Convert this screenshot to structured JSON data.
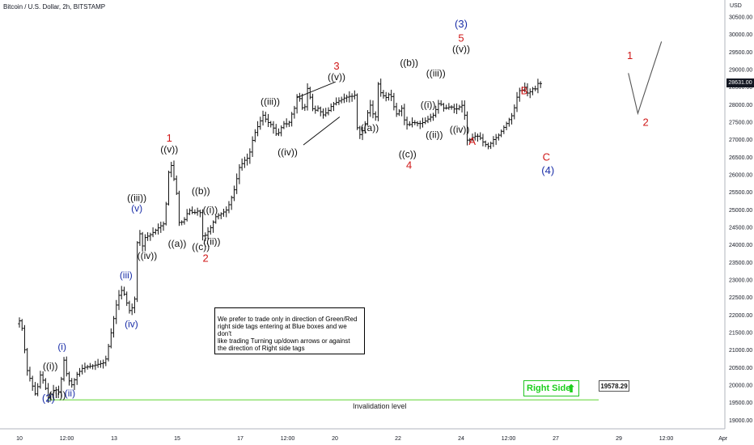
{
  "header": {
    "title": "Bitcoin / U.S. Dollar, 2h, BITSTAMP",
    "currency": "USD"
  },
  "note_box": {
    "line1": "We prefer to trade only in direction of Green/Red",
    "line2": "right side tags entering at Blue boxes and we don't",
    "line3": "like trading Turning up/down arrows or against",
    "line4": "the direction of Right side tags"
  },
  "right_side_tag": {
    "label": "Right Side",
    "arrow": "⬆",
    "color": "#22c522"
  },
  "invalidation": {
    "label": "Invalidation level",
    "price": "19578.29",
    "value": 19578.29,
    "color": "#7ddc5a"
  },
  "last_price": {
    "label": "28631.00",
    "value": 28631
  },
  "colors": {
    "red": "#d01818",
    "blue": "#1a2ea8",
    "black": "#111111"
  },
  "chart_data": {
    "type": "ohlc",
    "y_ticks": [
      "30500.00",
      "30000.00",
      "29500.00",
      "29000.00",
      "28500.00",
      "28000.00",
      "27500.00",
      "27000.00",
      "26500.00",
      "26000.00",
      "25500.00",
      "25000.00",
      "24500.00",
      "24000.00",
      "23500.00",
      "23000.00",
      "22500.00",
      "22000.00",
      "21500.00",
      "21000.00",
      "20500.00",
      "20000.00",
      "19500.00",
      "19000.00"
    ],
    "x_ticks": [
      "10",
      "12:00",
      "13",
      "15",
      "17",
      "12:00",
      "20",
      "22",
      "24",
      "12:00",
      "27",
      "29",
      "12:00",
      "Apr"
    ],
    "ylim": [
      18800,
      30800
    ],
    "price_path": [
      [
        0,
        21750
      ],
      [
        0.1,
        21850
      ],
      [
        0.2,
        21500
      ],
      [
        0.3,
        20500
      ],
      [
        0.45,
        20100
      ],
      [
        0.6,
        19700
      ],
      [
        0.75,
        20300
      ],
      [
        0.85,
        20100
      ],
      [
        1.0,
        19640
      ],
      [
        1.2,
        19900
      ],
      [
        1.35,
        19780
      ],
      [
        1.5,
        20750
      ],
      [
        1.6,
        20200
      ],
      [
        1.75,
        20000
      ],
      [
        1.9,
        20300
      ],
      [
        2.1,
        20500
      ],
      [
        2.4,
        20550
      ],
      [
        2.6,
        20600
      ],
      [
        2.8,
        20650
      ],
      [
        2.95,
        21300
      ],
      [
        3.05,
        21800
      ],
      [
        3.2,
        22500
      ],
      [
        3.35,
        22750
      ],
      [
        3.5,
        22300
      ],
      [
        3.6,
        22050
      ],
      [
        3.75,
        22500
      ],
      [
        3.85,
        24800
      ],
      [
        3.95,
        23850
      ],
      [
        4.05,
        24200
      ],
      [
        4.25,
        24300
      ],
      [
        4.5,
        24500
      ],
      [
        4.65,
        24600
      ],
      [
        4.75,
        25300
      ],
      [
        4.85,
        26500
      ],
      [
        4.95,
        26000
      ],
      [
        5.05,
        25600
      ],
      [
        5.15,
        24600
      ],
      [
        5.3,
        24700
      ],
      [
        5.45,
        25000
      ],
      [
        5.6,
        24900
      ],
      [
        5.8,
        25000
      ],
      [
        5.9,
        24200
      ],
      [
        6.0,
        24300
      ],
      [
        6.15,
        24500
      ],
      [
        6.3,
        24800
      ],
      [
        6.5,
        24900
      ],
      [
        6.65,
        25000
      ],
      [
        6.75,
        25200
      ],
      [
        6.9,
        25600
      ],
      [
        7.05,
        26200
      ],
      [
        7.2,
        26400
      ],
      [
        7.35,
        26500
      ],
      [
        7.5,
        27100
      ],
      [
        7.6,
        27300
      ],
      [
        7.7,
        27500
      ],
      [
        7.8,
        27700
      ],
      [
        7.95,
        27500
      ],
      [
        8.1,
        27400
      ],
      [
        8.25,
        27100
      ],
      [
        8.35,
        27300
      ],
      [
        8.5,
        27500
      ],
      [
        8.6,
        27400
      ],
      [
        8.7,
        27700
      ],
      [
        8.8,
        27900
      ],
      [
        8.9,
        28300
      ],
      [
        9.0,
        28100
      ],
      [
        9.1,
        27700
      ],
      [
        9.2,
        28500
      ],
      [
        9.3,
        28200
      ],
      [
        9.4,
        27800
      ],
      [
        9.55,
        27900
      ],
      [
        9.7,
        27700
      ],
      [
        9.85,
        27800
      ],
      [
        10.0,
        28000
      ],
      [
        10.2,
        28100
      ],
      [
        10.4,
        28200
      ],
      [
        10.6,
        28250
      ],
      [
        10.7,
        28200
      ],
      [
        10.75,
        28700
      ],
      [
        10.8,
        27000
      ],
      [
        10.9,
        27200
      ],
      [
        11.0,
        27300
      ],
      [
        11.1,
        27700
      ],
      [
        11.2,
        28000
      ],
      [
        11.3,
        27700
      ],
      [
        11.35,
        27400
      ],
      [
        11.45,
        28600
      ],
      [
        11.55,
        28300
      ],
      [
        11.7,
        28200
      ],
      [
        11.8,
        28300
      ],
      [
        11.9,
        28200
      ],
      [
        12.0,
        27700
      ],
      [
        12.1,
        27800
      ],
      [
        12.2,
        27900
      ],
      [
        12.3,
        27500
      ],
      [
        12.4,
        27400
      ],
      [
        12.55,
        27500
      ],
      [
        12.75,
        27450
      ],
      [
        12.9,
        27500
      ],
      [
        13.05,
        27600
      ],
      [
        13.2,
        27700
      ],
      [
        13.3,
        27900
      ],
      [
        13.4,
        28100
      ],
      [
        13.5,
        27900
      ],
      [
        13.6,
        27900
      ],
      [
        13.75,
        27950
      ],
      [
        13.9,
        27850
      ],
      [
        14.05,
        27950
      ],
      [
        14.15,
        28000
      ],
      [
        14.25,
        27300
      ],
      [
        14.3,
        26700
      ],
      [
        14.35,
        27000
      ],
      [
        14.5,
        27100
      ],
      [
        14.65,
        27100
      ],
      [
        14.8,
        26900
      ],
      [
        14.95,
        26800
      ],
      [
        15.1,
        27000
      ],
      [
        15.25,
        27100
      ],
      [
        15.4,
        27300
      ],
      [
        15.55,
        27500
      ],
      [
        15.7,
        27700
      ],
      [
        15.8,
        28000
      ],
      [
        15.9,
        28400
      ],
      [
        16.0,
        28400
      ],
      [
        16.1,
        28500
      ],
      [
        16.2,
        28300
      ],
      [
        16.3,
        28400
      ],
      [
        16.4,
        28500
      ],
      [
        16.5,
        28350
      ],
      [
        16.55,
        29100
      ],
      [
        16.6,
        28600
      ]
    ],
    "x_day_start": 10,
    "labels": [
      {
        "text": "(2)",
        "x": 0.92,
        "y": 19530,
        "color": "blue",
        "big": true
      },
      {
        "text": "((ii))",
        "x": 1.2,
        "y": 19630,
        "color": "black",
        "big": false
      },
      {
        "text": "(ii)",
        "x": 1.6,
        "y": 19680,
        "color": "blue",
        "big": false
      },
      {
        "text": "((i))",
        "x": 0.98,
        "y": 20450,
        "color": "black",
        "big": false
      },
      {
        "text": "(i)",
        "x": 1.35,
        "y": 21000,
        "color": "blue",
        "big": false
      },
      {
        "text": "(iii)",
        "x": 3.38,
        "y": 23050,
        "color": "blue",
        "big": false
      },
      {
        "text": "(iv)",
        "x": 3.55,
        "y": 21650,
        "color": "blue",
        "big": false
      },
      {
        "text": "((iii))",
        "x": 3.72,
        "y": 25250,
        "color": "black",
        "big": false
      },
      {
        "text": "(v)",
        "x": 3.72,
        "y": 24950,
        "color": "blue",
        "big": false
      },
      {
        "text": "((iv))",
        "x": 4.05,
        "y": 23600,
        "color": "black",
        "big": false
      },
      {
        "text": "1",
        "x": 4.75,
        "y": 26950,
        "color": "red",
        "big": true
      },
      {
        "text": "((v))",
        "x": 4.75,
        "y": 26630,
        "color": "black",
        "big": false
      },
      {
        "text": "((a))",
        "x": 5.0,
        "y": 23950,
        "color": "black",
        "big": false
      },
      {
        "text": "((b))",
        "x": 5.75,
        "y": 25450,
        "color": "black",
        "big": false
      },
      {
        "text": "((i))",
        "x": 6.05,
        "y": 24900,
        "color": "black",
        "big": false
      },
      {
        "text": "((c))",
        "x": 5.75,
        "y": 23850,
        "color": "black",
        "big": false
      },
      {
        "text": "((ii))",
        "x": 6.1,
        "y": 24000,
        "color": "black",
        "big": false
      },
      {
        "text": "2",
        "x": 5.9,
        "y": 23520,
        "color": "red",
        "big": true
      },
      {
        "text": "((iii))",
        "x": 7.95,
        "y": 28000,
        "color": "black",
        "big": false
      },
      {
        "text": "((iv))",
        "x": 8.5,
        "y": 26550,
        "color": "black",
        "big": false
      },
      {
        "text": "3",
        "x": 10.05,
        "y": 29000,
        "color": "red",
        "big": true
      },
      {
        "text": "((v))",
        "x": 10.05,
        "y": 28700,
        "color": "black",
        "big": false
      },
      {
        "text": "((a))",
        "x": 11.1,
        "y": 27250,
        "color": "black",
        "big": false
      },
      {
        "text": "((b))",
        "x": 12.35,
        "y": 29100,
        "color": "black",
        "big": false
      },
      {
        "text": "((c))",
        "x": 12.3,
        "y": 26500,
        "color": "black",
        "big": false
      },
      {
        "text": "4",
        "x": 12.35,
        "y": 26170,
        "color": "red",
        "big": true
      },
      {
        "text": "((iii))",
        "x": 13.2,
        "y": 28800,
        "color": "black",
        "big": false
      },
      {
        "text": "((i))",
        "x": 12.95,
        "y": 27900,
        "color": "black",
        "big": false
      },
      {
        "text": "((ii))",
        "x": 13.15,
        "y": 27050,
        "color": "black",
        "big": false
      },
      {
        "text": "(3)",
        "x": 14.0,
        "y": 30200,
        "color": "blue",
        "big": true
      },
      {
        "text": "5",
        "x": 14.0,
        "y": 29800,
        "color": "red",
        "big": true
      },
      {
        "text": "((v))",
        "x": 14.0,
        "y": 29500,
        "color": "black",
        "big": false
      },
      {
        "text": "((iv))",
        "x": 13.95,
        "y": 27200,
        "color": "black",
        "big": false
      },
      {
        "text": "A",
        "x": 14.35,
        "y": 26850,
        "color": "red",
        "big": true
      },
      {
        "text": "B",
        "x": 16.0,
        "y": 28300,
        "color": "red",
        "big": true
      },
      {
        "text": "C",
        "x": 16.7,
        "y": 26400,
        "color": "red",
        "big": true
      },
      {
        "text": "(4)",
        "x": 16.75,
        "y": 26020,
        "color": "blue",
        "big": true
      },
      {
        "text": "1",
        "x": 19.35,
        "y": 29300,
        "color": "red",
        "big": true
      },
      {
        "text": "2",
        "x": 19.85,
        "y": 27400,
        "color": "red",
        "big": true
      }
    ],
    "projection": [
      [
        19.3,
        28900
      ],
      [
        19.6,
        27750
      ],
      [
        20.35,
        29800
      ]
    ],
    "wedge": [
      [
        [
          8.8,
          28200
        ],
        [
          10.02,
          28650
        ]
      ],
      [
        [
          9.0,
          26850
        ],
        [
          10.15,
          27650
        ]
      ]
    ]
  }
}
